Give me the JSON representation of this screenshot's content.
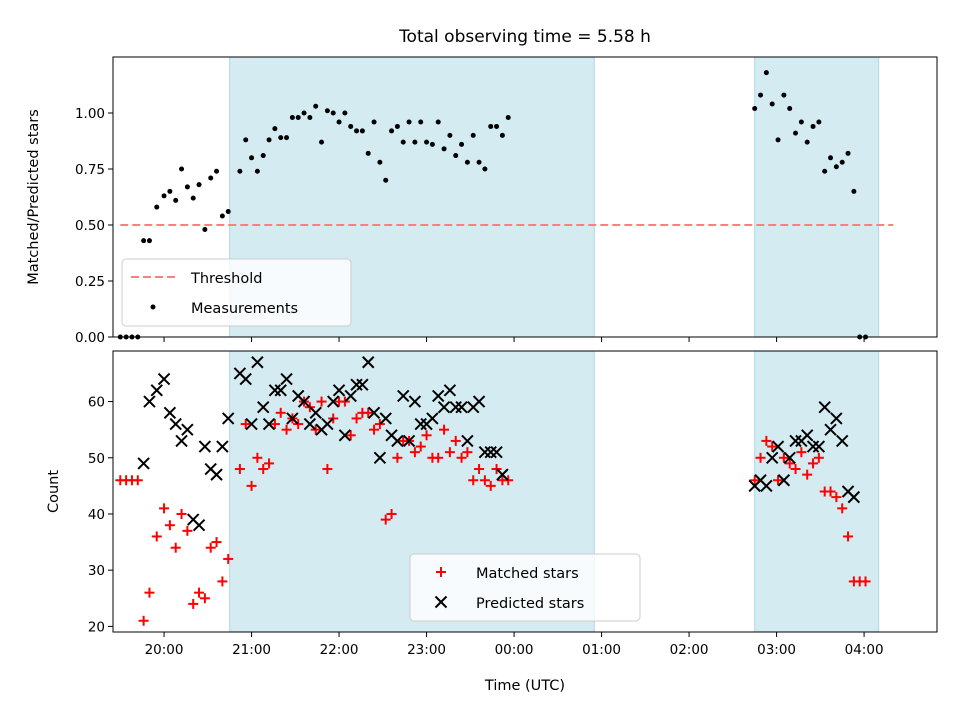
{
  "title": "Total observing time = 5.58 h",
  "chart_data": [
    {
      "type": "scatter",
      "panel": "top",
      "ylabel": "Matched/Predicted stars",
      "ylim": [
        0,
        1.25
      ],
      "yticks": [
        "0.00",
        "0.25",
        "0.50",
        "0.75",
        "1.00"
      ],
      "xlim": [
        "19:25",
        "04:50"
      ],
      "threshold": {
        "name": "Threshold",
        "value": 0.5,
        "x_range": [
          "19:30",
          "04:20"
        ],
        "color": "#ff7f7f"
      },
      "shaded_intervals": [
        [
          "20:45",
          "00:55"
        ],
        [
          "02:45",
          "04:10"
        ]
      ],
      "legend": {
        "placement": "lower-left",
        "entries": [
          "Threshold",
          "Measurements"
        ]
      },
      "series": [
        {
          "name": "Measurements",
          "color": "#000000",
          "points": [
            [
              "19:30",
              0.0
            ],
            [
              "19:34",
              0.0
            ],
            [
              "19:38",
              0.0
            ],
            [
              "19:42",
              0.0
            ],
            [
              "19:46",
              0.43
            ],
            [
              "19:50",
              0.43
            ],
            [
              "19:55",
              0.58
            ],
            [
              "20:00",
              0.63
            ],
            [
              "20:04",
              0.65
            ],
            [
              "20:08",
              0.61
            ],
            [
              "20:12",
              0.75
            ],
            [
              "20:16",
              0.67
            ],
            [
              "20:20",
              0.62
            ],
            [
              "20:24",
              0.68
            ],
            [
              "20:28",
              0.48
            ],
            [
              "20:32",
              0.71
            ],
            [
              "20:36",
              0.74
            ],
            [
              "20:40",
              0.54
            ],
            [
              "20:44",
              0.56
            ],
            [
              "20:52",
              0.74
            ],
            [
              "20:56",
              0.88
            ],
            [
              "21:00",
              0.8
            ],
            [
              "21:04",
              0.74
            ],
            [
              "21:08",
              0.81
            ],
            [
              "21:12",
              0.88
            ],
            [
              "21:16",
              0.93
            ],
            [
              "21:20",
              0.89
            ],
            [
              "21:24",
              0.89
            ],
            [
              "21:28",
              0.98
            ],
            [
              "21:32",
              0.98
            ],
            [
              "21:36",
              1.0
            ],
            [
              "21:40",
              0.98
            ],
            [
              "21:44",
              1.03
            ],
            [
              "21:48",
              0.87
            ],
            [
              "21:52",
              1.01
            ],
            [
              "21:56",
              1.0
            ],
            [
              "22:00",
              0.96
            ],
            [
              "22:04",
              1.0
            ],
            [
              "22:08",
              0.94
            ],
            [
              "22:12",
              0.92
            ],
            [
              "22:16",
              0.92
            ],
            [
              "22:20",
              0.82
            ],
            [
              "22:24",
              0.96
            ],
            [
              "22:28",
              0.78
            ],
            [
              "22:32",
              0.7
            ],
            [
              "22:36",
              0.92
            ],
            [
              "22:40",
              0.94
            ],
            [
              "22:44",
              0.87
            ],
            [
              "22:48",
              0.96
            ],
            [
              "22:52",
              0.87
            ],
            [
              "22:56",
              0.96
            ],
            [
              "23:00",
              0.87
            ],
            [
              "23:04",
              0.86
            ],
            [
              "23:08",
              0.96
            ],
            [
              "23:12",
              0.84
            ],
            [
              "23:16",
              0.9
            ],
            [
              "23:20",
              0.81
            ],
            [
              "23:24",
              0.86
            ],
            [
              "23:28",
              0.78
            ],
            [
              "23:32",
              0.9
            ],
            [
              "23:36",
              0.78
            ],
            [
              "23:40",
              0.75
            ],
            [
              "23:44",
              0.94
            ],
            [
              "23:48",
              0.94
            ],
            [
              "23:52",
              0.9
            ],
            [
              "23:56",
              0.98
            ],
            [
              "02:45",
              1.02
            ],
            [
              "02:49",
              1.08
            ],
            [
              "02:53",
              1.18
            ],
            [
              "02:57",
              1.04
            ],
            [
              "03:01",
              0.88
            ],
            [
              "03:05",
              1.08
            ],
            [
              "03:09",
              1.02
            ],
            [
              "03:13",
              0.91
            ],
            [
              "03:17",
              0.96
            ],
            [
              "03:21",
              0.87
            ],
            [
              "03:25",
              0.94
            ],
            [
              "03:29",
              0.96
            ],
            [
              "03:33",
              0.74
            ],
            [
              "03:37",
              0.8
            ],
            [
              "03:41",
              0.76
            ],
            [
              "03:45",
              0.78
            ],
            [
              "03:49",
              0.82
            ],
            [
              "03:53",
              0.65
            ],
            [
              "03:57",
              0.0
            ],
            [
              "04:01",
              0.0
            ]
          ]
        }
      ]
    },
    {
      "type": "scatter",
      "panel": "bottom",
      "xlabel": "Time (UTC)",
      "ylabel": "Count",
      "ylim": [
        19,
        69
      ],
      "yticks": [
        "20",
        "30",
        "40",
        "50",
        "60"
      ],
      "xlim": [
        "19:25",
        "04:50"
      ],
      "xticks": [
        "20:00",
        "21:00",
        "22:00",
        "23:00",
        "00:00",
        "01:00",
        "02:00",
        "03:00",
        "04:00"
      ],
      "shaded_intervals": [
        [
          "20:45",
          "00:55"
        ],
        [
          "02:45",
          "04:10"
        ]
      ],
      "legend": {
        "placement": "lower-center",
        "entries": [
          "Matched stars",
          "Predicted stars"
        ]
      },
      "series": [
        {
          "name": "Matched stars",
          "color": "#ff0000",
          "marker": "plus",
          "points": [
            [
              "19:30",
              46
            ],
            [
              "19:34",
              46
            ],
            [
              "19:38",
              46
            ],
            [
              "19:42",
              46
            ],
            [
              "19:46",
              21
            ],
            [
              "19:50",
              26
            ],
            [
              "19:55",
              36
            ],
            [
              "20:00",
              41
            ],
            [
              "20:04",
              38
            ],
            [
              "20:08",
              34
            ],
            [
              "20:12",
              40
            ],
            [
              "20:16",
              37
            ],
            [
              "20:20",
              24
            ],
            [
              "20:24",
              26
            ],
            [
              "20:28",
              25
            ],
            [
              "20:32",
              34
            ],
            [
              "20:36",
              35
            ],
            [
              "20:40",
              28
            ],
            [
              "20:44",
              32
            ],
            [
              "20:52",
              48
            ],
            [
              "20:56",
              56
            ],
            [
              "21:00",
              45
            ],
            [
              "21:04",
              50
            ],
            [
              "21:08",
              48
            ],
            [
              "21:12",
              49
            ],
            [
              "21:16",
              56
            ],
            [
              "21:20",
              58
            ],
            [
              "21:24",
              55
            ],
            [
              "21:28",
              57
            ],
            [
              "21:32",
              56
            ],
            [
              "21:36",
              60
            ],
            [
              "21:40",
              59
            ],
            [
              "21:44",
              55
            ],
            [
              "21:48",
              60
            ],
            [
              "21:52",
              48
            ],
            [
              "21:56",
              57
            ],
            [
              "22:00",
              60
            ],
            [
              "22:04",
              60
            ],
            [
              "22:08",
              54
            ],
            [
              "22:12",
              57
            ],
            [
              "22:16",
              58
            ],
            [
              "22:20",
              58
            ],
            [
              "22:24",
              55
            ],
            [
              "22:28",
              56
            ],
            [
              "22:32",
              39
            ],
            [
              "22:36",
              40
            ],
            [
              "22:40",
              50
            ],
            [
              "22:44",
              53
            ],
            [
              "22:48",
              53
            ],
            [
              "22:52",
              51
            ],
            [
              "22:56",
              52
            ],
            [
              "23:00",
              54
            ],
            [
              "23:04",
              50
            ],
            [
              "23:08",
              50
            ],
            [
              "23:12",
              55
            ],
            [
              "23:16",
              51
            ],
            [
              "23:20",
              53
            ],
            [
              "23:24",
              50
            ],
            [
              "23:28",
              51
            ],
            [
              "23:32",
              46
            ],
            [
              "23:36",
              48
            ],
            [
              "23:40",
              46
            ],
            [
              "23:44",
              45
            ],
            [
              "23:48",
              48
            ],
            [
              "23:52",
              46
            ],
            [
              "23:56",
              46
            ],
            [
              "02:45",
              46
            ],
            [
              "02:49",
              50
            ],
            [
              "02:53",
              53
            ],
            [
              "02:57",
              52
            ],
            [
              "03:01",
              46
            ],
            [
              "03:05",
              50
            ],
            [
              "03:09",
              49
            ],
            [
              "03:13",
              48
            ],
            [
              "03:17",
              51
            ],
            [
              "03:21",
              47
            ],
            [
              "03:25",
              49
            ],
            [
              "03:29",
              50
            ],
            [
              "03:33",
              44
            ],
            [
              "03:37",
              44
            ],
            [
              "03:41",
              43
            ],
            [
              "03:45",
              41
            ],
            [
              "03:49",
              36
            ],
            [
              "03:53",
              28
            ],
            [
              "03:57",
              28
            ],
            [
              "04:01",
              28
            ]
          ]
        },
        {
          "name": "Predicted stars",
          "color": "#000000",
          "marker": "x",
          "points": [
            [
              "19:46",
              49
            ],
            [
              "19:50",
              60
            ],
            [
              "19:55",
              62
            ],
            [
              "20:00",
              64
            ],
            [
              "20:04",
              58
            ],
            [
              "20:08",
              56
            ],
            [
              "20:12",
              53
            ],
            [
              "20:16",
              55
            ],
            [
              "20:20",
              39
            ],
            [
              "20:24",
              38
            ],
            [
              "20:28",
              52
            ],
            [
              "20:32",
              48
            ],
            [
              "20:36",
              47
            ],
            [
              "20:40",
              52
            ],
            [
              "20:44",
              57
            ],
            [
              "20:52",
              65
            ],
            [
              "20:56",
              64
            ],
            [
              "21:00",
              56
            ],
            [
              "21:04",
              67
            ],
            [
              "21:08",
              59
            ],
            [
              "21:12",
              56
            ],
            [
              "21:16",
              62
            ],
            [
              "21:20",
              62
            ],
            [
              "21:24",
              64
            ],
            [
              "21:28",
              57
            ],
            [
              "21:32",
              61
            ],
            [
              "21:36",
              60
            ],
            [
              "21:40",
              56
            ],
            [
              "21:44",
              58
            ],
            [
              "21:48",
              55
            ],
            [
              "21:52",
              56
            ],
            [
              "21:56",
              60
            ],
            [
              "22:00",
              62
            ],
            [
              "22:04",
              54
            ],
            [
              "22:08",
              61
            ],
            [
              "22:12",
              63
            ],
            [
              "22:16",
              63
            ],
            [
              "22:20",
              67
            ],
            [
              "22:24",
              58
            ],
            [
              "22:28",
              50
            ],
            [
              "22:32",
              57
            ],
            [
              "22:36",
              54
            ],
            [
              "22:40",
              53
            ],
            [
              "22:44",
              61
            ],
            [
              "22:48",
              53
            ],
            [
              "22:52",
              60
            ],
            [
              "22:56",
              56
            ],
            [
              "23:00",
              56
            ],
            [
              "23:04",
              57
            ],
            [
              "23:08",
              61
            ],
            [
              "23:12",
              59
            ],
            [
              "23:16",
              62
            ],
            [
              "23:20",
              59
            ],
            [
              "23:24",
              59
            ],
            [
              "23:28",
              53
            ],
            [
              "23:32",
              59
            ],
            [
              "23:36",
              60
            ],
            [
              "23:40",
              51
            ],
            [
              "23:44",
              51
            ],
            [
              "23:48",
              51
            ],
            [
              "23:52",
              47
            ],
            [
              "02:45",
              45
            ],
            [
              "02:49",
              46
            ],
            [
              "02:53",
              45
            ],
            [
              "02:57",
              50
            ],
            [
              "03:01",
              52
            ],
            [
              "03:05",
              46
            ],
            [
              "03:09",
              50
            ],
            [
              "03:13",
              53
            ],
            [
              "03:17",
              53
            ],
            [
              "03:21",
              54
            ],
            [
              "03:25",
              52
            ],
            [
              "03:29",
              52
            ],
            [
              "03:33",
              59
            ],
            [
              "03:37",
              55
            ],
            [
              "03:41",
              57
            ],
            [
              "03:45",
              53
            ],
            [
              "03:49",
              44
            ],
            [
              "03:53",
              43
            ]
          ]
        }
      ]
    }
  ]
}
